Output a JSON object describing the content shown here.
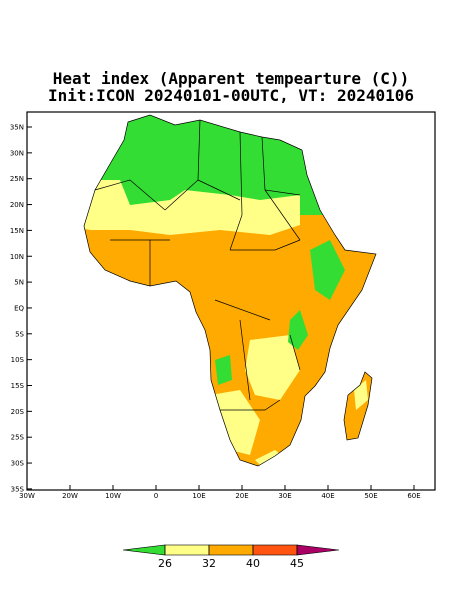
{
  "title": "Heat index (Apparent tempearture (C))",
  "subtitle": "Init:ICON 20240101-00UTC, VT: 20240106",
  "map": {
    "lon_labels": [
      "30W",
      "20W",
      "10W",
      "0",
      "10E",
      "20E",
      "30E",
      "40E",
      "50E",
      "60E"
    ],
    "lat_labels": [
      "35N",
      "30N",
      "25N",
      "20N",
      "15N",
      "10N",
      "5N",
      "EQ",
      "5S",
      "10S",
      "15S",
      "20S",
      "25S",
      "30S",
      "35S"
    ]
  },
  "colorbar": {
    "levels": [
      26,
      32,
      40,
      45
    ],
    "colors": [
      "#33dd33",
      "#ffff88",
      "#ffaa00",
      "#ff5511",
      "#aa0066"
    ]
  }
}
